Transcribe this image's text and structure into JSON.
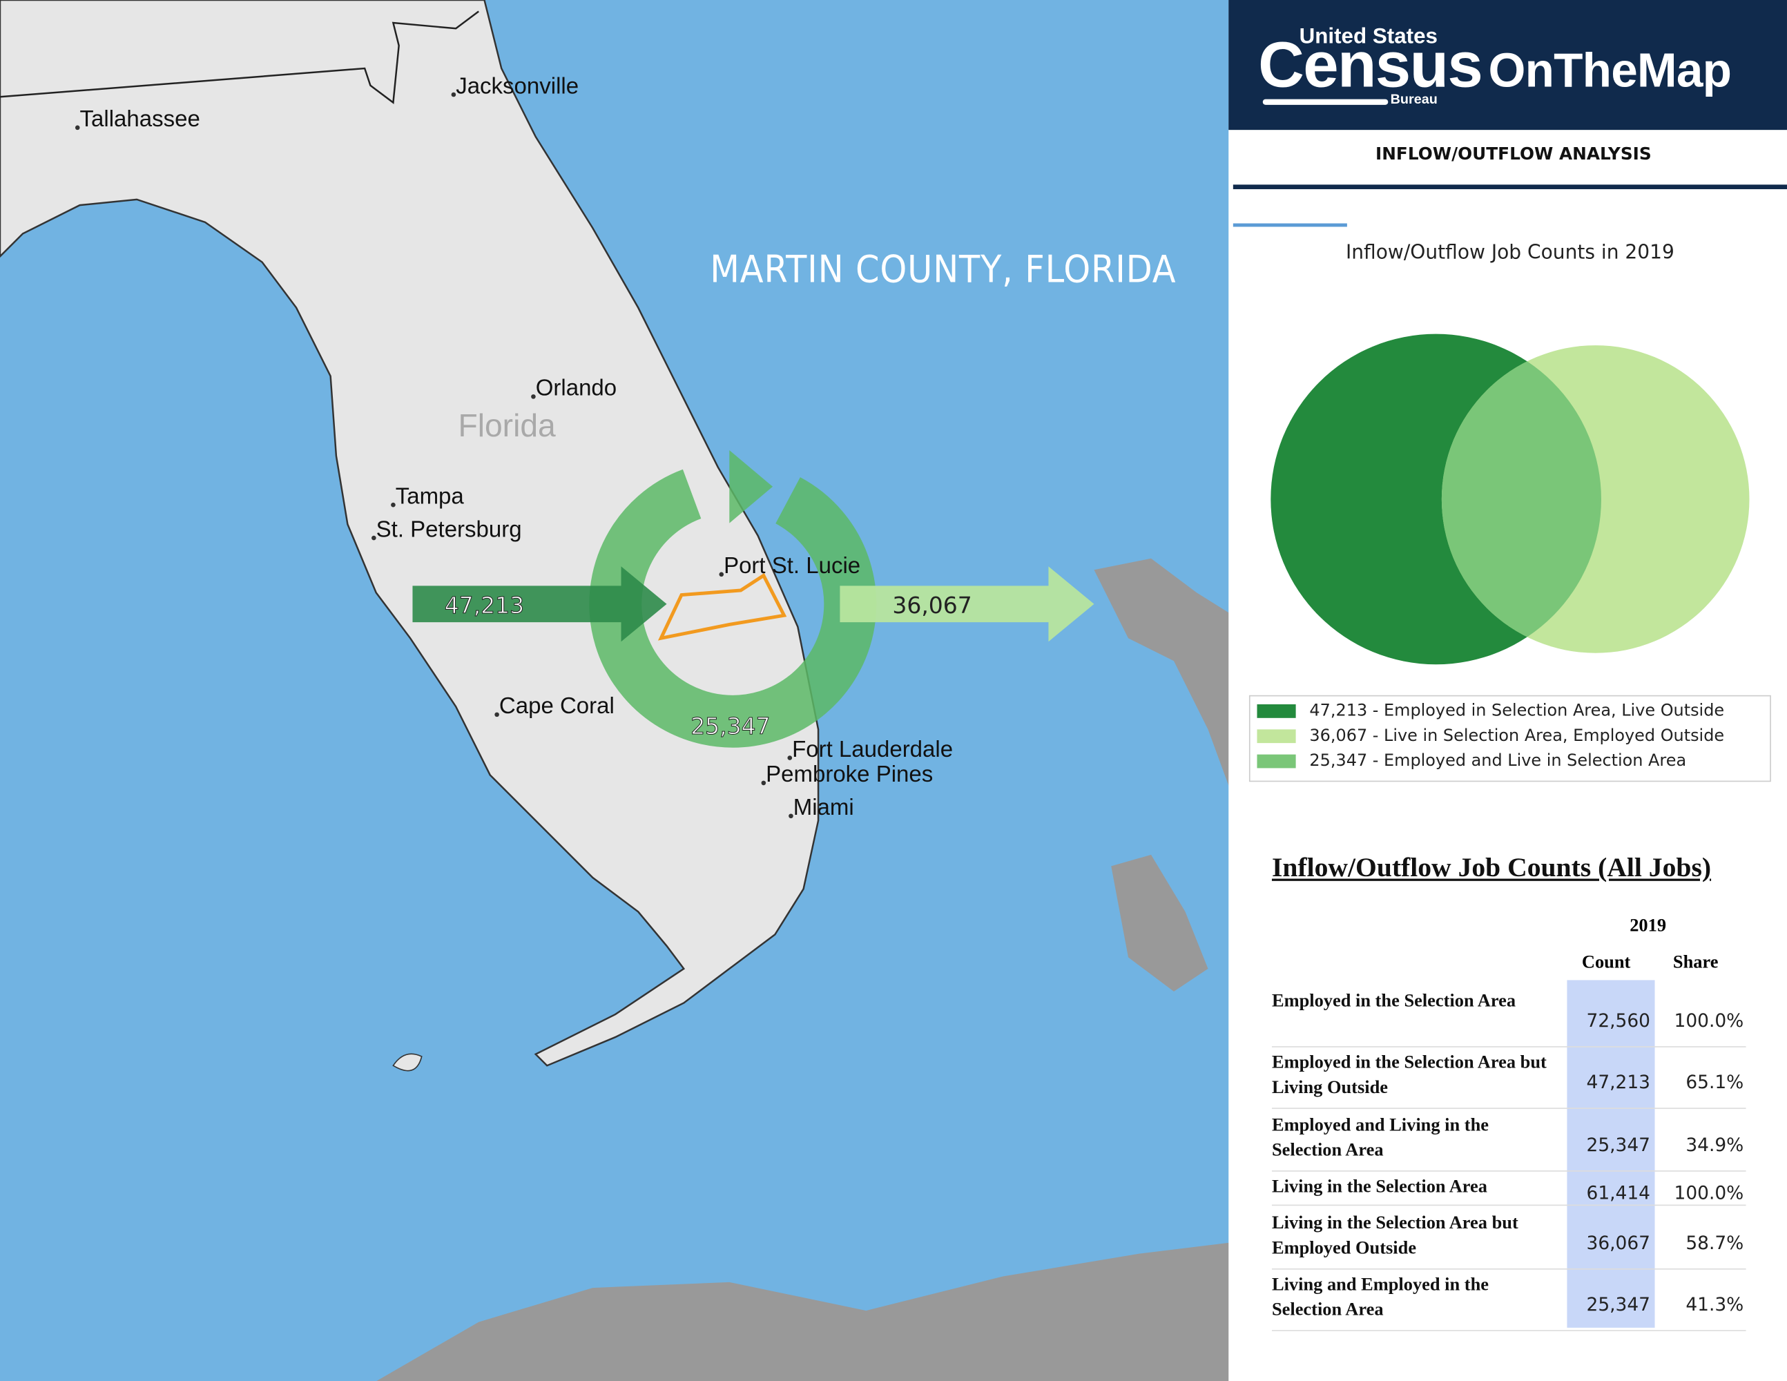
{
  "map": {
    "title": "MARTIN COUNTY, FLORIDA",
    "state_label": "Florida",
    "cities": [
      "Jacksonville",
      "Tallahassee",
      "Orlando",
      "Tampa",
      "St. Petersburg",
      "Port St. Lucie",
      "Cape Coral",
      "Fort Lauderdale",
      "Pembroke Pines",
      "Miami"
    ],
    "flows": {
      "inflow": "47,213",
      "outflow": "36,067",
      "internal": "25,347"
    }
  },
  "header": {
    "agency_top": "United States",
    "agency_name": "Census",
    "agency_sub": "Bureau",
    "product": "OnTheMap",
    "section": "INFLOW/OUTFLOW ANALYSIS"
  },
  "venn": {
    "title": "Inflow/Outflow Job Counts in 2019",
    "legend": [
      "47,213 - Employed in Selection Area, Live Outside",
      "36,067 - Live in Selection Area, Employed Outside",
      "25,347 - Employed and Live in Selection Area"
    ]
  },
  "table": {
    "title": "Inflow/Outflow Job Counts (All Jobs)",
    "year": "2019",
    "columns": [
      "Count",
      "Share"
    ],
    "rows": [
      [
        "Employed in the Selection Area",
        "72,560",
        "100.0%"
      ],
      [
        "Employed in the Selection Area but Living Outside",
        "47,213",
        "65.1%"
      ],
      [
        "Employed and Living in the Selection Area",
        "25,347",
        "34.9%"
      ],
      [
        "Living in the Selection Area",
        "61,414",
        "100.0%"
      ],
      [
        "Living in the Selection Area but Employed Outside",
        "36,067",
        "58.7%"
      ],
      [
        "Living and Employed in the Selection Area",
        "25,347",
        "41.3%"
      ]
    ]
  }
}
